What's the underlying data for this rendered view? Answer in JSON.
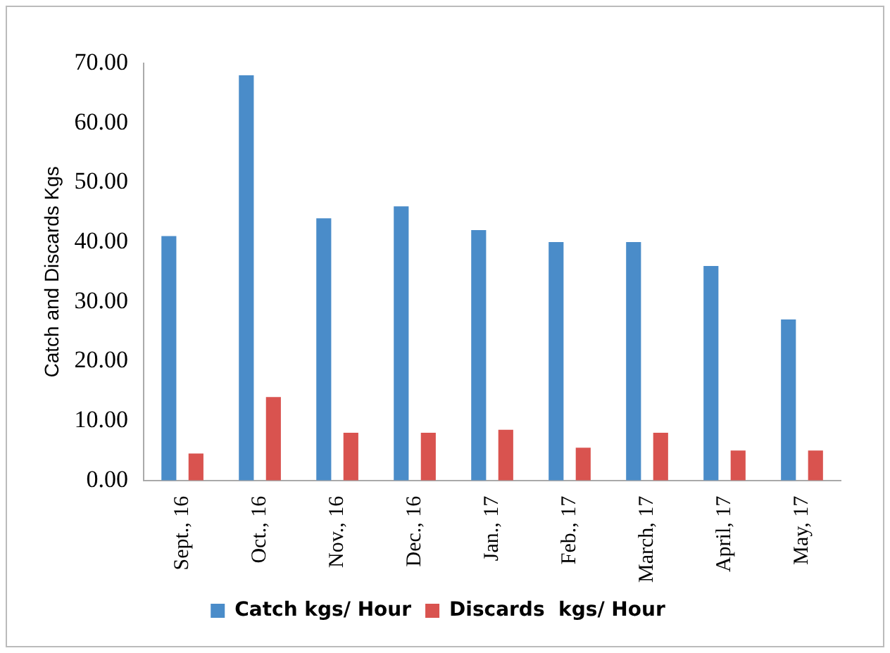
{
  "chart_data": {
    "type": "bar",
    "ylabel": "Catch and Discards Kgs",
    "categories": [
      "Sept., 16",
      "Oct., 16",
      "Nov., 16",
      "Dec., 16",
      "Jan., 17",
      "Feb., 17",
      "March, 17",
      "April, 17",
      "May, 17"
    ],
    "series": [
      {
        "name": "Catch kgs/ Hour",
        "color": "#4a8cc9",
        "values": [
          41,
          68,
          44,
          46,
          42,
          40,
          40,
          36,
          27
        ]
      },
      {
        "name": "Discards  kgs/ Hour",
        "color": "#d9534f",
        "values": [
          4.5,
          14,
          8,
          8,
          8.5,
          5.5,
          8,
          5,
          5
        ]
      }
    ],
    "ylim": [
      0,
      70
    ],
    "yticks": [
      {
        "value": 0,
        "label": "0.00"
      },
      {
        "value": 10,
        "label": "10.00"
      },
      {
        "value": 20,
        "label": "20.00"
      },
      {
        "value": 30,
        "label": "30.00"
      },
      {
        "value": 40,
        "label": "40.00"
      },
      {
        "value": 50,
        "label": "50.00"
      },
      {
        "value": 60,
        "label": "60.00"
      },
      {
        "value": 70,
        "label": "70.00"
      }
    ],
    "grid": false,
    "legend": "bottom"
  }
}
